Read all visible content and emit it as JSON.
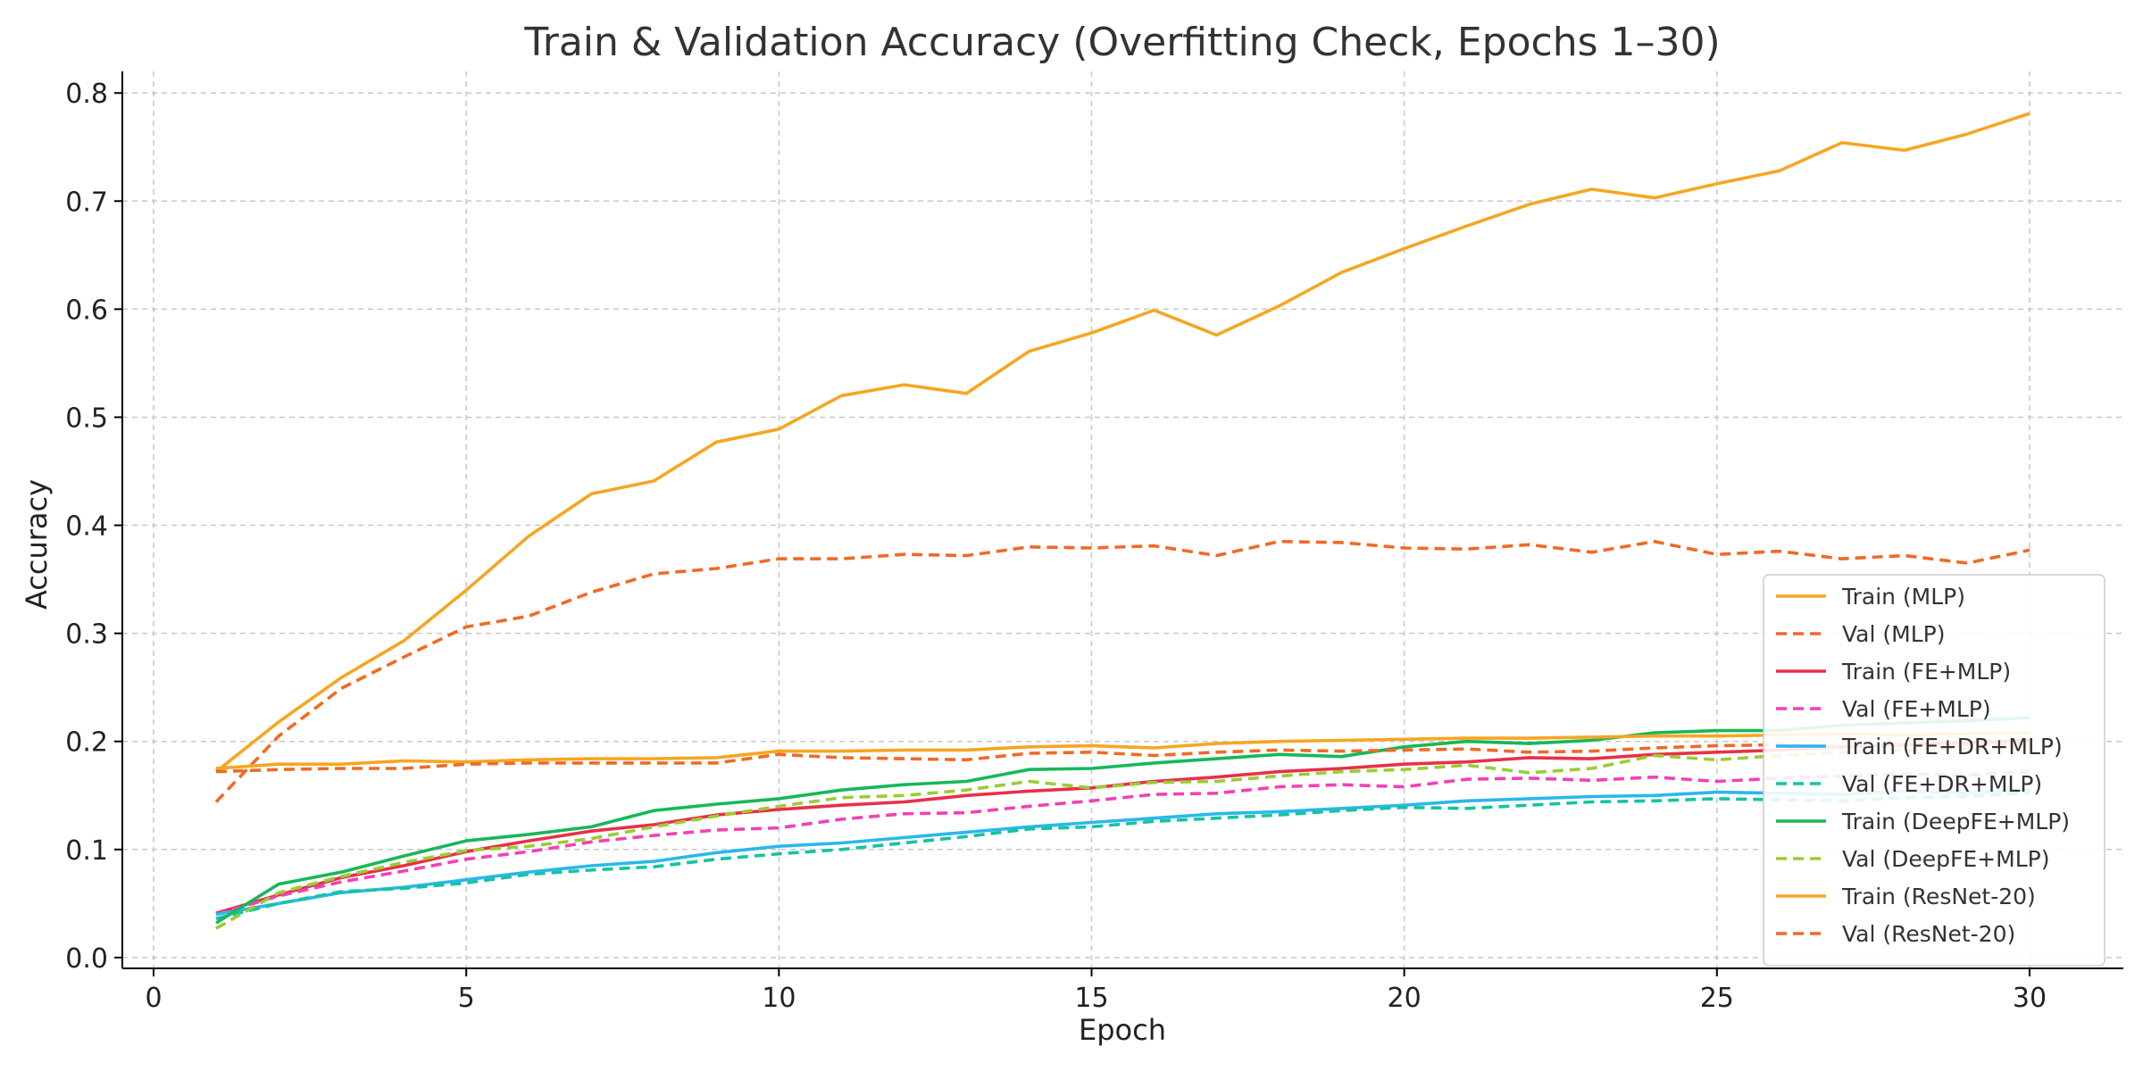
{
  "chart_data": {
    "type": "line",
    "title": "Train & Validation Accuracy (Overfitting Check, Epochs 1–30)",
    "xlabel": "Epoch",
    "ylabel": "Accuracy",
    "xlim": [
      -0.5,
      31.5
    ],
    "ylim": [
      -0.01,
      0.82
    ],
    "x_ticks": [
      0,
      5,
      10,
      15,
      20,
      25,
      30
    ],
    "y_ticks": [
      0.0,
      0.1,
      0.2,
      0.3,
      0.4,
      0.5,
      0.6,
      0.7,
      0.8
    ],
    "x_tick_labels": [
      "0",
      "5",
      "10",
      "15",
      "20",
      "25",
      "30"
    ],
    "y_tick_labels": [
      "0.0",
      "0.1",
      "0.2",
      "0.3",
      "0.4",
      "0.5",
      "0.6",
      "0.7",
      "0.8"
    ],
    "grid": true,
    "legend_position": "lower-right",
    "x": [
      1,
      2,
      3,
      4,
      5,
      6,
      7,
      8,
      9,
      10,
      11,
      12,
      13,
      14,
      15,
      16,
      17,
      18,
      19,
      20,
      21,
      22,
      23,
      24,
      25,
      26,
      27,
      28,
      29,
      30
    ],
    "series": [
      {
        "name": "Train (MLP)",
        "color": "#f5a623",
        "dash": "solid",
        "values": [
          0.172,
          0.218,
          0.259,
          0.293,
          0.34,
          0.39,
          0.429,
          0.441,
          0.477,
          0.489,
          0.52,
          0.53,
          0.522,
          0.561,
          0.578,
          0.599,
          0.576,
          0.603,
          0.634,
          0.656,
          0.677,
          0.697,
          0.711,
          0.703,
          0.716,
          0.728,
          0.754,
          0.747,
          0.762,
          0.781
        ]
      },
      {
        "name": "Val (MLP)",
        "color": "#f06a24",
        "dash": "dashed",
        "values": [
          0.144,
          0.205,
          0.249,
          0.278,
          0.306,
          0.316,
          0.338,
          0.355,
          0.36,
          0.369,
          0.369,
          0.373,
          0.372,
          0.38,
          0.379,
          0.381,
          0.372,
          0.385,
          0.384,
          0.379,
          0.378,
          0.382,
          0.375,
          0.385,
          0.373,
          0.376,
          0.369,
          0.372,
          0.365,
          0.377
        ]
      },
      {
        "name": "Train (FE+MLP)",
        "color": "#e8304a",
        "dash": "solid",
        "values": [
          0.041,
          0.058,
          0.074,
          0.085,
          0.098,
          0.108,
          0.117,
          0.123,
          0.132,
          0.137,
          0.141,
          0.144,
          0.15,
          0.154,
          0.157,
          0.163,
          0.167,
          0.172,
          0.175,
          0.179,
          0.181,
          0.185,
          0.184,
          0.188,
          0.19,
          0.192,
          0.195,
          0.197,
          0.199,
          0.201
        ]
      },
      {
        "name": "Val (FE+MLP)",
        "color": "#f241b4",
        "dash": "dashed",
        "values": [
          0.04,
          0.057,
          0.07,
          0.08,
          0.091,
          0.098,
          0.107,
          0.113,
          0.118,
          0.12,
          0.128,
          0.133,
          0.134,
          0.14,
          0.145,
          0.151,
          0.152,
          0.158,
          0.16,
          0.158,
          0.165,
          0.166,
          0.164,
          0.167,
          0.163,
          0.166,
          0.168,
          0.17,
          0.169,
          0.172
        ]
      },
      {
        "name": "Train (FE+DR+MLP)",
        "color": "#2ab8ea",
        "dash": "solid",
        "values": [
          0.04,
          0.05,
          0.06,
          0.065,
          0.072,
          0.079,
          0.085,
          0.089,
          0.097,
          0.103,
          0.106,
          0.111,
          0.116,
          0.121,
          0.125,
          0.129,
          0.133,
          0.135,
          0.138,
          0.141,
          0.145,
          0.147,
          0.149,
          0.15,
          0.153,
          0.152,
          0.151,
          0.154,
          0.152,
          0.155
        ]
      },
      {
        "name": "Val (FE+DR+MLP)",
        "color": "#13c4a3",
        "dash": "dashed",
        "values": [
          0.036,
          0.05,
          0.061,
          0.064,
          0.069,
          0.077,
          0.081,
          0.084,
          0.091,
          0.096,
          0.1,
          0.106,
          0.112,
          0.119,
          0.121,
          0.126,
          0.129,
          0.132,
          0.136,
          0.139,
          0.138,
          0.141,
          0.144,
          0.145,
          0.147,
          0.146,
          0.145,
          0.148,
          0.149,
          0.152
        ]
      },
      {
        "name": "Train (DeepFE+MLP)",
        "color": "#16b85a",
        "dash": "solid",
        "values": [
          0.032,
          0.068,
          0.079,
          0.094,
          0.108,
          0.114,
          0.121,
          0.136,
          0.142,
          0.147,
          0.155,
          0.16,
          0.163,
          0.174,
          0.175,
          0.18,
          0.184,
          0.188,
          0.186,
          0.195,
          0.2,
          0.198,
          0.201,
          0.208,
          0.21,
          0.21,
          0.215,
          0.217,
          0.219,
          0.222
        ]
      },
      {
        "name": "Val (DeepFE+MLP)",
        "color": "#9acd32",
        "dash": "dashed",
        "values": [
          0.027,
          0.06,
          0.075,
          0.088,
          0.099,
          0.103,
          0.11,
          0.121,
          0.131,
          0.14,
          0.148,
          0.15,
          0.155,
          0.163,
          0.157,
          0.162,
          0.163,
          0.168,
          0.172,
          0.174,
          0.178,
          0.171,
          0.175,
          0.187,
          0.183,
          0.187,
          0.19,
          0.192,
          0.193,
          0.196
        ]
      },
      {
        "name": "Train (ResNet-20)",
        "color": "#f5a623",
        "dash": "solid",
        "values": [
          0.175,
          0.179,
          0.179,
          0.182,
          0.181,
          0.183,
          0.184,
          0.184,
          0.185,
          0.191,
          0.191,
          0.192,
          0.192,
          0.195,
          0.196,
          0.194,
          0.198,
          0.2,
          0.201,
          0.202,
          0.203,
          0.203,
          0.204,
          0.205,
          0.205,
          0.206,
          0.207,
          0.206,
          0.207,
          0.208
        ]
      },
      {
        "name": "Val (ResNet-20)",
        "color": "#f06a24",
        "dash": "dashed",
        "values": [
          0.172,
          0.174,
          0.175,
          0.175,
          0.179,
          0.18,
          0.18,
          0.18,
          0.18,
          0.188,
          0.185,
          0.184,
          0.183,
          0.189,
          0.19,
          0.187,
          0.19,
          0.192,
          0.191,
          0.192,
          0.193,
          0.19,
          0.191,
          0.194,
          0.196,
          0.197,
          0.195,
          0.196,
          0.197,
          0.198
        ]
      }
    ]
  }
}
